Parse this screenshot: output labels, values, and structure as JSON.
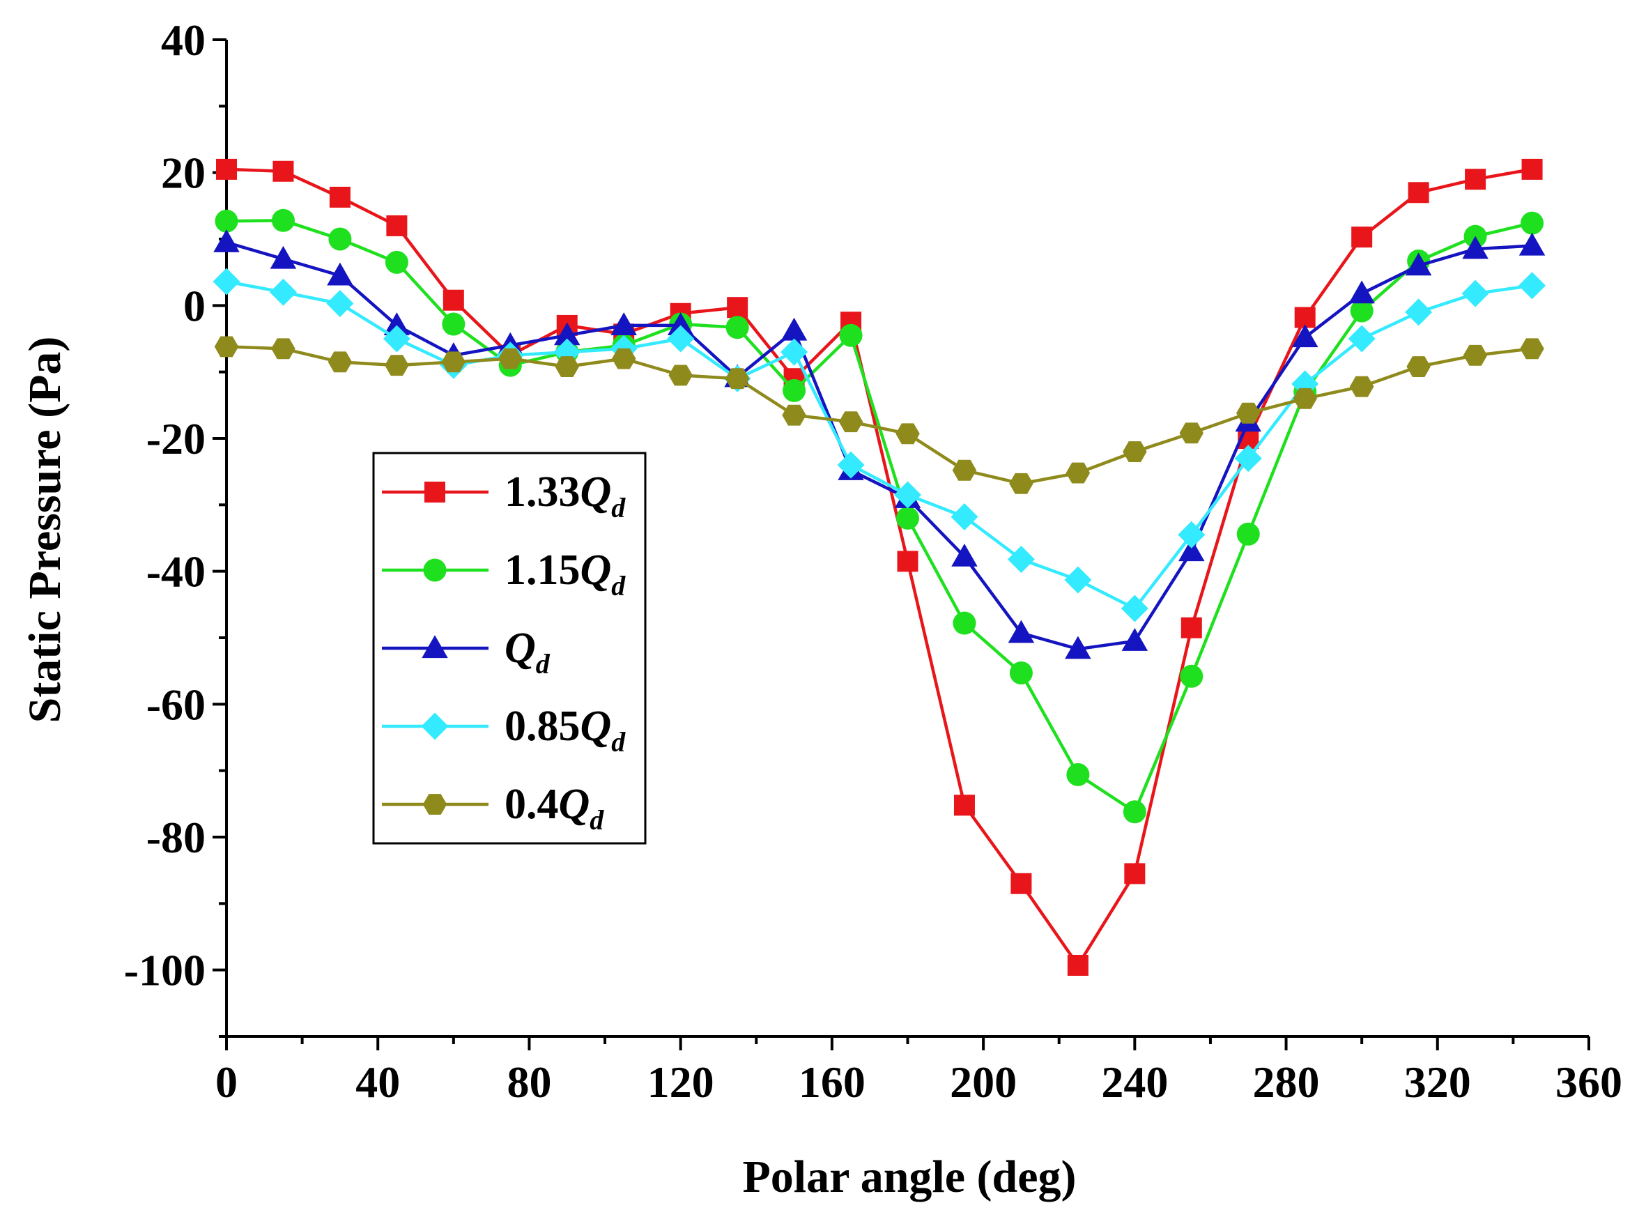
{
  "chart_data": {
    "type": "line",
    "xlabel": "Polar angle (deg)",
    "ylabel": "Static Pressure (Pa)",
    "xlim": [
      0,
      360
    ],
    "ylim": [
      -110,
      40
    ],
    "xticks": [
      0,
      40,
      80,
      120,
      160,
      200,
      240,
      280,
      320,
      360
    ],
    "yticks": [
      40,
      20,
      0,
      -20,
      -40,
      -60,
      -80,
      -100
    ],
    "grid": false,
    "legend_position": "center-left",
    "x": [
      0,
      15,
      30,
      45,
      60,
      75,
      90,
      105,
      120,
      135,
      150,
      165,
      180,
      195,
      210,
      225,
      240,
      255,
      270,
      285,
      300,
      315,
      330,
      345
    ],
    "series": [
      {
        "name_main": "1.33",
        "name_var": "Q",
        "name_sub": "d",
        "color": "#e8161b",
        "marker": "square",
        "values": [
          20.5,
          20.2,
          16.3,
          12.0,
          0.8,
          -7.5,
          -3.0,
          -4.3,
          -1.2,
          -0.3,
          -11.0,
          -2.5,
          -38.5,
          -75.2,
          -87.0,
          -99.3,
          -85.5,
          -48.5,
          -20.0,
          -1.8,
          10.3,
          17.0,
          19.0,
          20.5
        ]
      },
      {
        "name_main": "1.15",
        "name_var": "Q",
        "name_sub": "d",
        "color": "#1ee01e",
        "marker": "circle",
        "values": [
          12.7,
          12.8,
          10.0,
          6.5,
          -2.8,
          -9.0,
          -7.0,
          -6.0,
          -2.8,
          -3.3,
          -12.8,
          -4.5,
          -32.0,
          -47.8,
          -55.3,
          -70.6,
          -76.2,
          -55.8,
          -34.4,
          -13.0,
          -0.8,
          6.7,
          10.4,
          12.4
        ]
      },
      {
        "name_main": "",
        "name_var": "Q",
        "name_sub": "d",
        "color": "#1414c0",
        "marker": "triangle",
        "values": [
          9.5,
          7.0,
          4.5,
          -3.0,
          -7.5,
          -6.0,
          -4.5,
          -3.0,
          -3.0,
          -10.8,
          -3.8,
          -24.8,
          -29.0,
          -37.8,
          -49.3,
          -51.7,
          -50.5,
          -37.0,
          -17.5,
          -4.8,
          1.8,
          6.0,
          8.5,
          9.0
        ]
      },
      {
        "name_main": "0.85",
        "name_var": "Q",
        "name_sub": "d",
        "color": "#33eaff",
        "marker": "diamond",
        "values": [
          3.6,
          2.0,
          0.3,
          -5.0,
          -9.0,
          -7.5,
          -7.0,
          -6.5,
          -5.0,
          -11.0,
          -7.0,
          -24.0,
          -28.5,
          -31.8,
          -38.2,
          -41.3,
          -45.6,
          -34.5,
          -23.0,
          -11.8,
          -5.0,
          -1.0,
          1.8,
          3.0
        ]
      },
      {
        "name_main": "0.4",
        "name_var": "Q",
        "name_sub": "d",
        "color": "#8f8a1c",
        "marker": "hexagon",
        "values": [
          -6.2,
          -6.5,
          -8.5,
          -9.0,
          -8.5,
          -8.0,
          -9.2,
          -8.0,
          -10.5,
          -11.0,
          -16.5,
          -17.5,
          -19.3,
          -24.8,
          -26.8,
          -25.2,
          -22.0,
          -19.2,
          -16.2,
          -14.0,
          -12.2,
          -9.2,
          -7.5,
          -6.5
        ]
      }
    ]
  }
}
